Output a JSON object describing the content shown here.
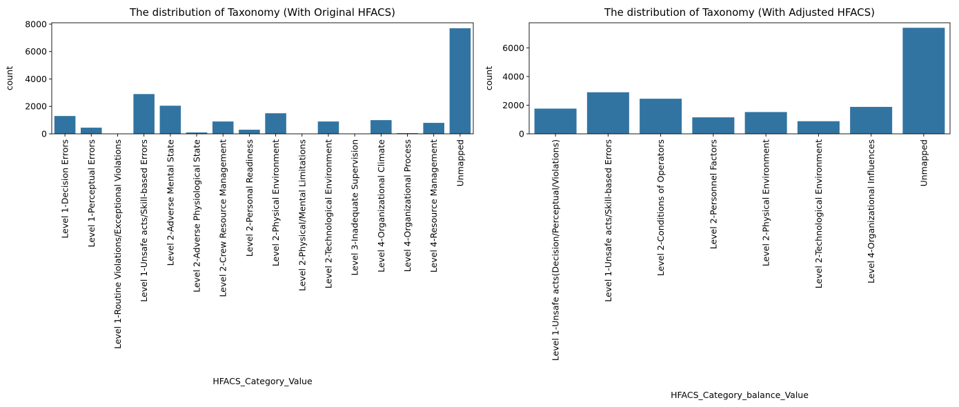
{
  "chart_data": [
    {
      "type": "bar",
      "title": "The distribution of Taxonomy (With Original HFACS)",
      "xlabel": "HFACS_Category_Value",
      "ylabel": "count",
      "ylim": [
        0,
        8100
      ],
      "yticks": [
        0,
        2000,
        4000,
        6000,
        8000
      ],
      "color": "#3274a1",
      "grid": false,
      "categories": [
        "Level 1-Decision Errors",
        "Level 1-Perceptual Errors",
        "Level 1-Routine Violations/Exceptional Violations",
        "Level 1-Unsafe acts/Skill-based Errors",
        "Level 2-Adverse Mental State",
        "Level 2-Adverse Physiological State",
        "Level 2-Crew Resource Management",
        "Level 2-Personal Readiness",
        "Level 2-Physical Environment",
        "Level 2-Physical/Mental Limitations",
        "Level 2-Technological Environment",
        "Level 3-Inadequate Supervision",
        "Level 4-Organizational Climate",
        "Level 4-Organizational Process",
        "Level 4-Resource Management",
        "Unmapped"
      ],
      "values": [
        1300,
        450,
        10,
        2900,
        2050,
        100,
        900,
        300,
        1500,
        5,
        900,
        5,
        1000,
        50,
        800,
        7700
      ]
    },
    {
      "type": "bar",
      "title": "The distribution of Taxonomy (With Adjusted HFACS)",
      "xlabel": "HFACS_Category_balance_Value",
      "ylabel": "count",
      "ylim": [
        0,
        7750
      ],
      "yticks": [
        0,
        2000,
        4000,
        6000
      ],
      "color": "#3274a1",
      "grid": false,
      "categories": [
        "Level 1-Unsafe acts(Decision/Perceptual/Violations)",
        "Level 1-Unsafe acts/Skill-based Errors",
        "Level 2-Conditions of Operators",
        "Level 2-Personnel Factors",
        "Level 2-Physical Environment",
        "Level 2-Technological Environment",
        "Level 4-Organizational Influences",
        "Unmapped"
      ],
      "values": [
        1760,
        2900,
        2450,
        1150,
        1520,
        880,
        1880,
        7400
      ]
    }
  ]
}
